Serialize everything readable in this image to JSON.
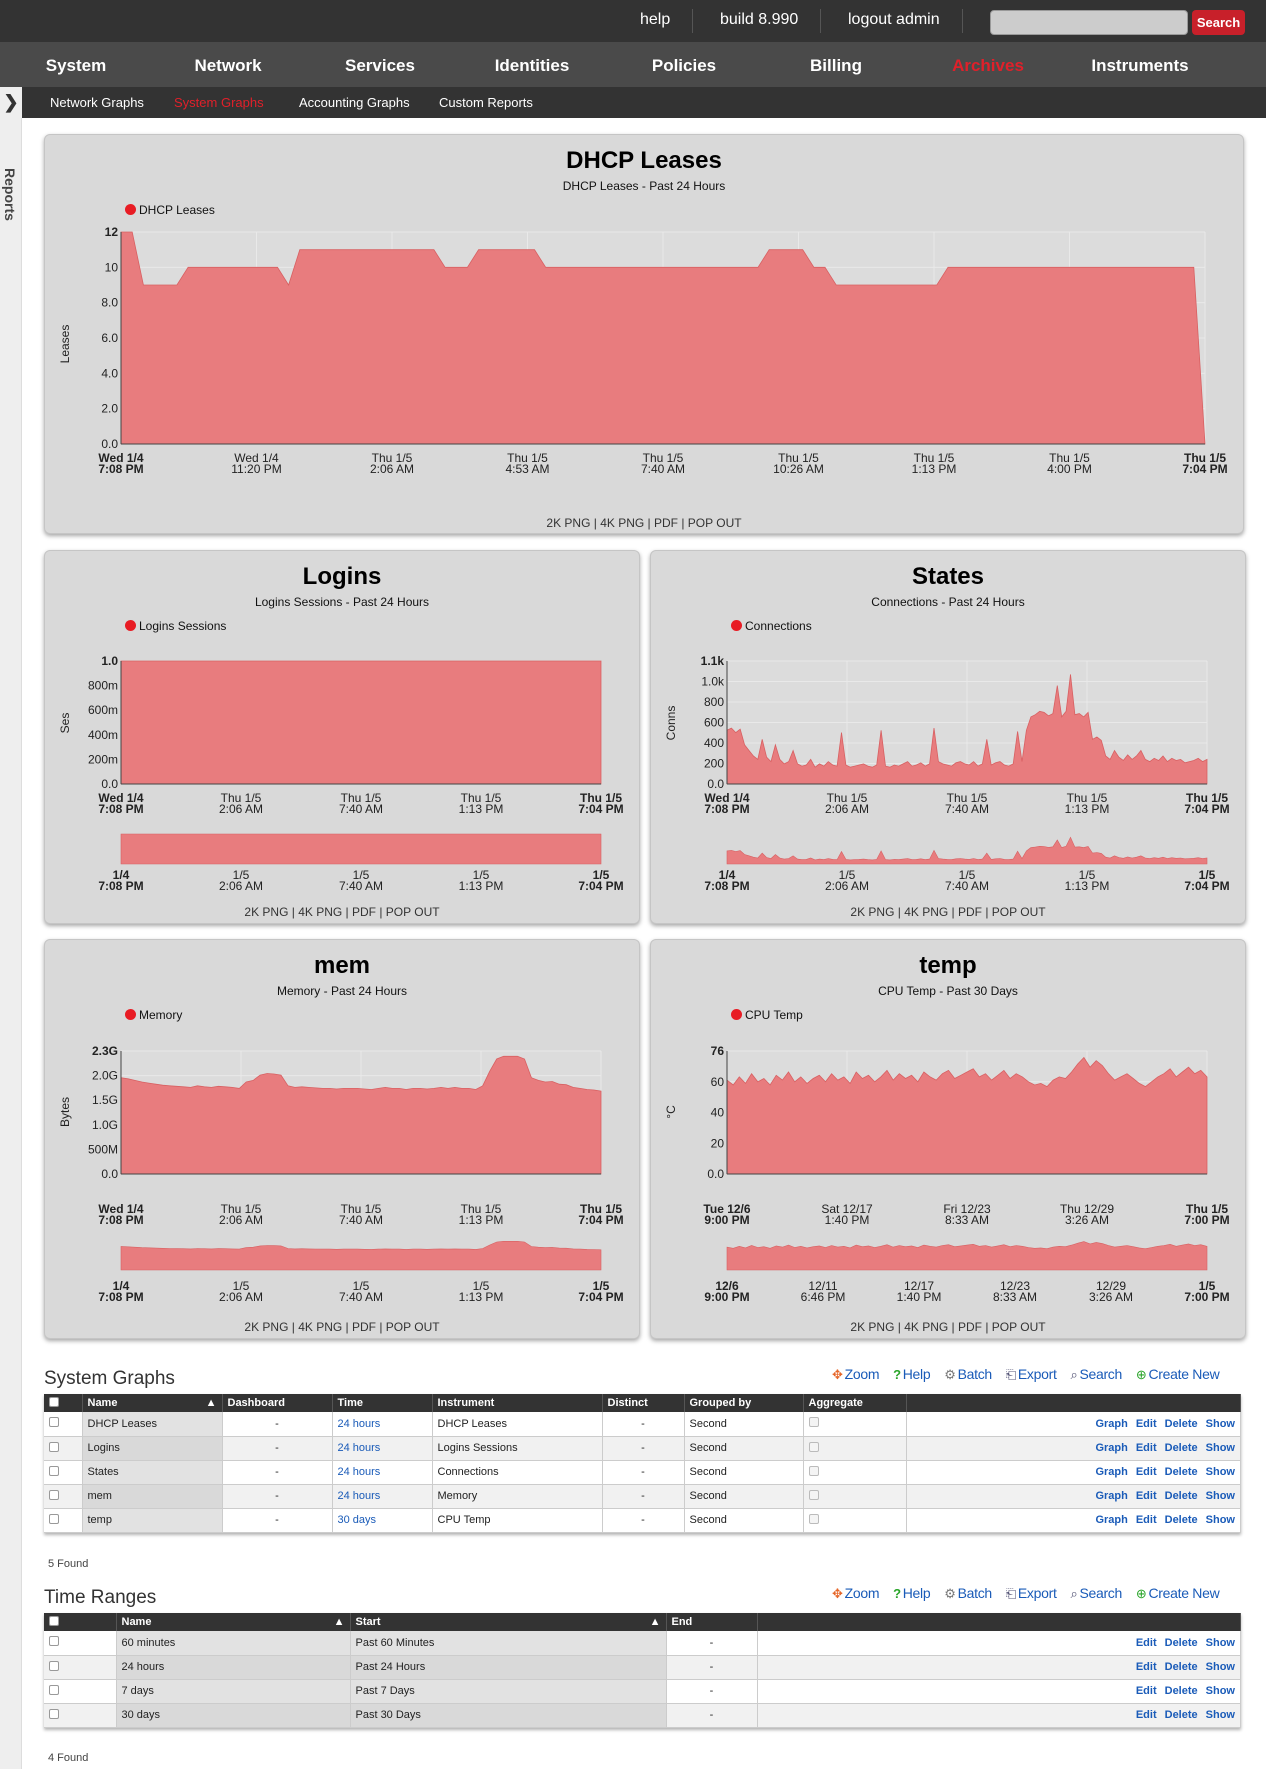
{
  "topbar": {
    "help": "help",
    "build": "build 8.990",
    "logout": "logout admin",
    "search_placeholder": "",
    "search_button": "Search"
  },
  "main_nav": [
    "System",
    "Network",
    "Services",
    "Identities",
    "Policies",
    "Billing",
    "Archives",
    "Instruments"
  ],
  "sub_nav": [
    "Network Graphs",
    "System Graphs",
    "Accounting Graphs",
    "Custom Reports"
  ],
  "side_tab": "Reports",
  "colors": {
    "area": "#e87c7e",
    "legend_dot": "#e81c24",
    "active_nav": "#e0202a",
    "link": "#1a5bb8"
  },
  "graph_links": "2K PNG | 4K PNG | PDF | POP OUT",
  "charts": [
    {
      "title": "DHCP Leases",
      "subtitle": "DHCP Leases - Past 24 Hours",
      "legend": "DHCP Leases",
      "ylabel": "Leases",
      "chart_data": {
        "type": "area",
        "y_ticks": [
          "0.0",
          "2.0",
          "4.0",
          "6.0",
          "8.0",
          "10",
          "12"
        ],
        "ylim": [
          0,
          12
        ],
        "x_ticks": [
          {
            "l1": "Wed 1/4",
            "l2": "7:08 PM",
            "bold": true
          },
          {
            "l1": "Wed 1/4",
            "l2": "11:20 PM"
          },
          {
            "l1": "Thu 1/5",
            "l2": "2:06 AM"
          },
          {
            "l1": "Thu 1/5",
            "l2": "4:53 AM"
          },
          {
            "l1": "Thu 1/5",
            "l2": "7:40 AM"
          },
          {
            "l1": "Thu 1/5",
            "l2": "10:26 AM"
          },
          {
            "l1": "Thu 1/5",
            "l2": "1:13 PM"
          },
          {
            "l1": "Thu 1/5",
            "l2": "4:00 PM"
          },
          {
            "l1": "Thu 1/5",
            "l2": "7:04 PM",
            "bold": true
          }
        ],
        "series": [
          {
            "name": "DHCP Leases",
            "values": [
              12,
              12,
              9,
              9,
              9,
              9,
              10,
              10,
              10,
              10,
              10,
              10,
              10,
              10,
              10,
              9,
              11,
              11,
              11,
              11,
              11,
              11,
              11,
              11,
              11,
              11,
              11,
              11,
              11,
              10,
              10,
              10,
              11,
              11,
              11,
              11,
              11,
              11,
              10,
              10,
              10,
              10,
              10,
              10,
              10,
              10,
              10,
              10,
              10,
              10,
              10,
              10,
              10,
              10,
              10,
              10,
              10,
              10,
              11,
              11,
              11,
              11,
              10,
              10,
              9,
              9,
              9,
              9,
              9,
              9,
              9,
              9,
              9,
              9,
              10,
              10,
              10,
              10,
              10,
              10,
              10,
              10,
              10,
              10,
              10,
              10,
              10,
              10,
              10,
              10,
              10,
              10,
              10,
              10,
              10,
              10,
              10,
              0
            ]
          }
        ]
      }
    },
    {
      "title": "Logins",
      "subtitle": "Logins Sessions - Past 24 Hours",
      "legend": "Logins Sessions",
      "ylabel": "Ses",
      "chart_data": {
        "type": "area",
        "y_ticks": [
          "0.0",
          "200m",
          "400m",
          "600m",
          "800m",
          "1.0"
        ],
        "ylim": [
          0,
          1
        ],
        "x_ticks": [
          {
            "l1": "Wed 1/4",
            "l2": "7:08 PM",
            "bold": true
          },
          {
            "l1": "Thu 1/5",
            "l2": "2:06 AM"
          },
          {
            "l1": "Thu 1/5",
            "l2": "7:40 AM"
          },
          {
            "l1": "Thu 1/5",
            "l2": "1:13 PM"
          },
          {
            "l1": "Thu 1/5",
            "l2": "7:04 PM",
            "bold": true
          }
        ],
        "overview_ticks": [
          {
            "l1": "1/4",
            "l2": "7:08 PM",
            "bold": true
          },
          {
            "l1": "1/5",
            "l2": "2:06 AM"
          },
          {
            "l1": "1/5",
            "l2": "7:40 AM"
          },
          {
            "l1": "1/5",
            "l2": "1:13 PM"
          },
          {
            "l1": "1/5",
            "l2": "7:04 PM",
            "bold": true
          }
        ],
        "series": [
          {
            "name": "Logins Sessions",
            "values": [
              1,
              1,
              1,
              1,
              1,
              1,
              1,
              1,
              1,
              1,
              1,
              1,
              1,
              1,
              1,
              1,
              1,
              1,
              1,
              1
            ]
          }
        ]
      }
    },
    {
      "title": "States",
      "subtitle": "Connections - Past 24 Hours",
      "legend": "Connections",
      "ylabel": "Conns",
      "chart_data": {
        "type": "area",
        "y_ticks": [
          "0.0",
          "200",
          "400",
          "600",
          "800",
          "1.0k",
          "1.1k"
        ],
        "ylim": [
          0,
          1100
        ],
        "x_ticks": [
          {
            "l1": "Wed 1/4",
            "l2": "7:08 PM",
            "bold": true
          },
          {
            "l1": "Thu 1/5",
            "l2": "2:06 AM"
          },
          {
            "l1": "Thu 1/5",
            "l2": "7:40 AM"
          },
          {
            "l1": "Thu 1/5",
            "l2": "1:13 PM"
          },
          {
            "l1": "Thu 1/5",
            "l2": "7:04 PM",
            "bold": true
          }
        ],
        "overview_ticks": [
          {
            "l1": "1/4",
            "l2": "7:08 PM",
            "bold": true
          },
          {
            "l1": "1/5",
            "l2": "2:06 AM"
          },
          {
            "l1": "1/5",
            "l2": "7:40 AM"
          },
          {
            "l1": "1/5",
            "l2": "1:13 PM"
          },
          {
            "l1": "1/5",
            "l2": "7:04 PM",
            "bold": true
          }
        ],
        "series": [
          {
            "name": "Connections",
            "values": [
              480,
              500,
              460,
              490,
              350,
              300,
              250,
              220,
              400,
              240,
              200,
              350,
              220,
              180,
              200,
              300,
              180,
              160,
              170,
              220,
              150,
              180,
              160,
              200,
              170,
              160,
              460,
              170,
              150,
              160,
              170,
              180,
              160,
              150,
              170,
              480,
              160,
              150,
              170,
              160,
              180,
              200,
              160,
              170,
              190,
              160,
              180,
              500,
              200,
              180,
              170,
              160,
              190,
              200,
              180,
              170,
              200,
              160,
              180,
              400,
              170,
              190,
              200,
              170,
              160,
              180,
              470,
              200,
              480,
              600,
              620,
              650,
              640,
              610,
              630,
              880,
              600,
              650,
              980,
              620,
              630,
              600,
              640,
              400,
              420,
              390,
              250,
              220,
              300,
              240,
              210,
              260,
              220,
              250,
              300,
              220,
              200,
              230,
              210,
              250,
              200,
              230,
              210,
              220,
              190,
              200,
              210,
              230,
              200,
              220
            ]
          }
        ]
      }
    },
    {
      "title": "mem",
      "subtitle": "Memory - Past 24 Hours",
      "legend": "Memory",
      "ylabel": "Bytes",
      "chart_data": {
        "type": "area",
        "y_ticks": [
          "0.0",
          "500M",
          "1.0G",
          "1.5G",
          "2.0G",
          "2.3G"
        ],
        "ylim": [
          0,
          2.3
        ],
        "x_ticks": [
          {
            "l1": "Wed 1/4",
            "l2": "7:08 PM",
            "bold": true
          },
          {
            "l1": "Thu 1/5",
            "l2": "2:06 AM"
          },
          {
            "l1": "Thu 1/5",
            "l2": "7:40 AM"
          },
          {
            "l1": "Thu 1/5",
            "l2": "1:13 PM"
          },
          {
            "l1": "Thu 1/5",
            "l2": "7:04 PM",
            "bold": true
          }
        ],
        "overview_ticks": [
          {
            "l1": "1/4",
            "l2": "7:08 PM",
            "bold": true
          },
          {
            "l1": "1/5",
            "l2": "2:06 AM"
          },
          {
            "l1": "1/5",
            "l2": "7:40 AM"
          },
          {
            "l1": "1/5",
            "l2": "1:13 PM"
          },
          {
            "l1": "1/5",
            "l2": "7:04 PM",
            "bold": true
          }
        ],
        "series": [
          {
            "name": "Memory",
            "values": [
              1.8,
              1.78,
              1.75,
              1.72,
              1.7,
              1.68,
              1.66,
              1.65,
              1.64,
              1.63,
              1.62,
              1.65,
              1.63,
              1.62,
              1.64,
              1.63,
              1.62,
              1.6,
              1.72,
              1.75,
              1.85,
              1.88,
              1.87,
              1.85,
              1.65,
              1.62,
              1.63,
              1.62,
              1.61,
              1.6,
              1.6,
              1.59,
              1.6,
              1.6,
              1.6,
              1.59,
              1.58,
              1.6,
              1.62,
              1.6,
              1.6,
              1.58,
              1.6,
              1.6,
              1.59,
              1.6,
              1.62,
              1.6,
              1.62,
              1.6,
              1.6,
              1.58,
              1.65,
              1.92,
              2.15,
              2.2,
              2.2,
              2.2,
              2.15,
              1.8,
              1.75,
              1.72,
              1.73,
              1.68,
              1.67,
              1.62,
              1.6,
              1.58,
              1.57,
              1.55
            ]
          }
        ]
      }
    },
    {
      "title": "temp",
      "subtitle": "CPU Temp - Past 30 Days",
      "legend": "CPU Temp",
      "ylabel": "°C",
      "chart_data": {
        "type": "area",
        "y_ticks": [
          "0.0",
          "20",
          "40",
          "60",
          "76"
        ],
        "ylim": [
          0,
          76
        ],
        "x_ticks": [
          {
            "l1": "Tue 12/6",
            "l2": "9:00 PM",
            "bold": true
          },
          {
            "l1": "Sat 12/17",
            "l2": "1:40 PM"
          },
          {
            "l1": "Fri 12/23",
            "l2": "8:33 AM"
          },
          {
            "l1": "Thu 12/29",
            "l2": "3:26 AM"
          },
          {
            "l1": "Thu 1/5",
            "l2": "7:00 PM",
            "bold": true
          }
        ],
        "overview_ticks": [
          {
            "l1": "12/6",
            "l2": "9:00 PM",
            "bold": true
          },
          {
            "l1": "12/11",
            "l2": "6:46 PM"
          },
          {
            "l1": "12/17",
            "l2": "1:40 PM"
          },
          {
            "l1": "12/23",
            "l2": "8:33 AM"
          },
          {
            "l1": "12/29",
            "l2": "3:26 AM"
          },
          {
            "l1": "1/5",
            "l2": "7:00 PM",
            "bold": true
          }
        ],
        "series": [
          {
            "name": "CPU Temp",
            "values": [
              58,
              55,
              60,
              56,
              62,
              57,
              59,
              55,
              61,
              58,
              63,
              57,
              60,
              56,
              59,
              61,
              57,
              62,
              58,
              60,
              56,
              63,
              59,
              61,
              57,
              60,
              64,
              58,
              62,
              59,
              61,
              57,
              63,
              60,
              58,
              62,
              64,
              59,
              61,
              63,
              65,
              60,
              62,
              58,
              61,
              64,
              59,
              62,
              60,
              57,
              55,
              56,
              54,
              58,
              60,
              59,
              63,
              68,
              72,
              66,
              70,
              67,
              62,
              58,
              60,
              62,
              59,
              56,
              54,
              57,
              60,
              62,
              65,
              60,
              63,
              66,
              62,
              64,
              60
            ]
          }
        ]
      }
    }
  ],
  "system_graphs": {
    "title": "System Graphs",
    "toolbar": [
      "Zoom",
      "Help",
      "Batch",
      "Export",
      "Search",
      "Create New"
    ],
    "columns": [
      "Name",
      "Dashboard",
      "Time",
      "Instrument",
      "Distinct",
      "Grouped by",
      "Aggregate"
    ],
    "rows": [
      {
        "name": "DHCP Leases",
        "dashboard": "-",
        "time": "24 hours",
        "instrument": "DHCP Leases",
        "distinct": "-",
        "grouped": "Second"
      },
      {
        "name": "Logins",
        "dashboard": "-",
        "time": "24 hours",
        "instrument": "Logins Sessions",
        "distinct": "-",
        "grouped": "Second"
      },
      {
        "name": "States",
        "dashboard": "-",
        "time": "24 hours",
        "instrument": "Connections",
        "distinct": "-",
        "grouped": "Second"
      },
      {
        "name": "mem",
        "dashboard": "-",
        "time": "24 hours",
        "instrument": "Memory",
        "distinct": "-",
        "grouped": "Second"
      },
      {
        "name": "temp",
        "dashboard": "-",
        "time": "30 days",
        "instrument": "CPU Temp",
        "distinct": "-",
        "grouped": "Second"
      }
    ],
    "actions": [
      "Graph",
      "Edit",
      "Delete",
      "Show"
    ],
    "found": "5 Found"
  },
  "time_ranges": {
    "title": "Time Ranges",
    "toolbar": [
      "Zoom",
      "Help",
      "Batch",
      "Export",
      "Search",
      "Create New"
    ],
    "columns": [
      "Name",
      "Start",
      "End"
    ],
    "rows": [
      {
        "name": "60 minutes",
        "start": "Past 60 Minutes",
        "end": "-"
      },
      {
        "name": "24 hours",
        "start": "Past 24 Hours",
        "end": "-"
      },
      {
        "name": "7 days",
        "start": "Past 7 Days",
        "end": "-"
      },
      {
        "name": "30 days",
        "start": "Past 30 Days",
        "end": "-"
      }
    ],
    "actions": [
      "Edit",
      "Delete",
      "Show"
    ],
    "found": "4 Found"
  }
}
